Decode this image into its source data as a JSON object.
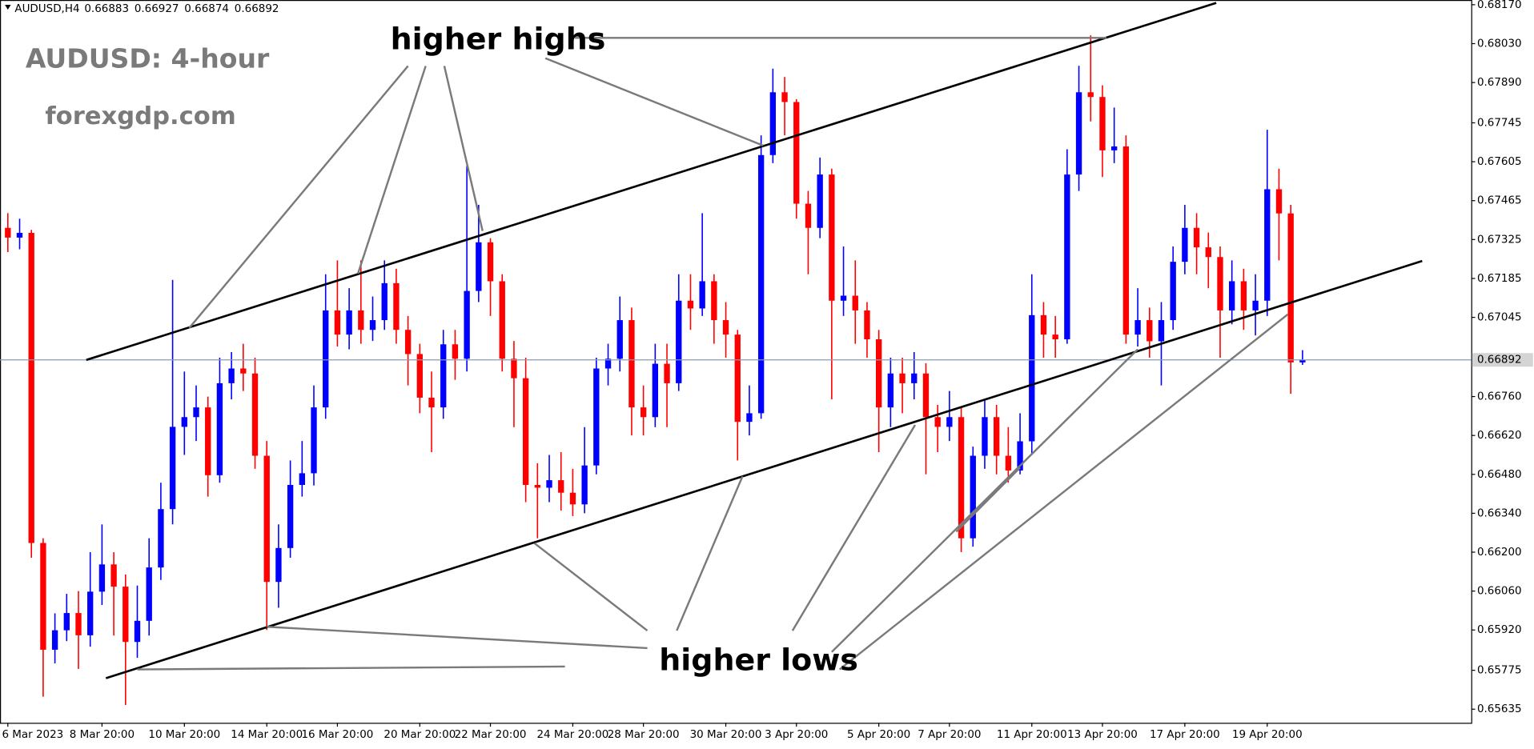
{
  "header": {
    "symbol": "AUDUSD,H4"
  },
  "chart_data": {
    "type": "candlestick",
    "title": "AUDUSD: 4-hour",
    "subtitle": "forexgdp.com",
    "annotations": [
      "higher highs",
      "higher lows"
    ],
    "up_color": "#0000ff",
    "down_color": "#ff0000",
    "grid": false,
    "ylim": [
      0.65586,
      0.68187
    ],
    "yticks": [
      {
        "value": 0.6817,
        "label": "0.68170"
      },
      {
        "value": 0.6803,
        "label": "0.68030"
      },
      {
        "value": 0.6789,
        "label": "0.67890"
      },
      {
        "value": 0.67745,
        "label": "0.67745"
      },
      {
        "value": 0.67605,
        "label": "0.67605"
      },
      {
        "value": 0.67465,
        "label": "0.67465"
      },
      {
        "value": 0.67325,
        "label": "0.67325"
      },
      {
        "value": 0.67185,
        "label": "0.67185"
      },
      {
        "value": 0.67045,
        "label": "0.67045"
      },
      {
        "value": 0.6676,
        "label": "0.66760"
      },
      {
        "value": 0.6662,
        "label": "0.66620"
      },
      {
        "value": 0.6648,
        "label": "0.66480"
      },
      {
        "value": 0.6634,
        "label": "0.66340"
      },
      {
        "value": 0.662,
        "label": "0.66200"
      },
      {
        "value": 0.6606,
        "label": "0.66060"
      },
      {
        "value": 0.6592,
        "label": "0.65920"
      },
      {
        "value": 0.65775,
        "label": "0.65775"
      },
      {
        "value": 0.65635,
        "label": "0.65635"
      }
    ],
    "categories": [
      "6 Mar 2023",
      null,
      null,
      null,
      null,
      null,
      null,
      null,
      "8 Mar 20:00",
      null,
      null,
      null,
      null,
      null,
      null,
      "10 Mar 20:00",
      null,
      null,
      null,
      null,
      null,
      null,
      "14 Mar 20:00",
      null,
      null,
      null,
      null,
      null,
      "16 Mar 20:00",
      null,
      null,
      null,
      null,
      null,
      null,
      "20 Mar 20:00",
      null,
      null,
      null,
      null,
      null,
      "22 Mar 20:00",
      null,
      null,
      null,
      null,
      null,
      null,
      "24 Mar 20:00",
      null,
      null,
      null,
      null,
      null,
      "28 Mar 20:00",
      null,
      null,
      null,
      null,
      null,
      null,
      "30 Mar 20:00",
      null,
      null,
      null,
      null,
      null,
      "3 Apr 20:00",
      null,
      null,
      null,
      null,
      null,
      null,
      "5 Apr 20:00",
      null,
      null,
      null,
      null,
      null,
      "7 Apr 20:00",
      null,
      null,
      null,
      null,
      null,
      null,
      "11 Apr 20:00",
      null,
      null,
      null,
      null,
      null,
      "13 Apr 20:00",
      null,
      null,
      null,
      null,
      null,
      null,
      "17 Apr 20:00",
      null,
      null,
      null,
      null,
      null,
      null,
      "19 Apr 20:00",
      null,
      null,
      null
    ],
    "open": [
      0.67367,
      0.67332,
      0.67349,
      0.66233,
      0.65849,
      0.65919,
      0.65981,
      0.65901,
      0.66058,
      0.66156,
      0.66076,
      0.65877,
      0.65953,
      0.66145,
      0.66355,
      0.66651,
      0.66686,
      0.66721,
      0.66477,
      0.66808,
      0.66861,
      0.66843,
      0.66547,
      0.66093,
      0.66215,
      0.66442,
      0.66484,
      0.66721,
      0.6707,
      0.66983,
      0.6707,
      0.67,
      0.67035,
      0.67168,
      0.67,
      0.66913,
      0.66756,
      0.66721,
      0.66948,
      0.66896,
      0.6714,
      0.67315,
      0.67175,
      0.66896,
      0.66826,
      0.66442,
      0.66432,
      0.66459,
      0.66414,
      0.66372,
      0.66512,
      0.66861,
      0.66896,
      0.67035,
      0.66721,
      0.66686,
      0.66878,
      0.66808,
      0.67105,
      0.67077,
      0.67175,
      0.67035,
      0.66983,
      0.66669,
      0.667,
      0.67629,
      0.67855,
      0.6782,
      0.67454,
      0.67367,
      0.67559,
      0.67105,
      0.67123,
      0.6707,
      0.66966,
      0.66721,
      0.66843,
      0.66808,
      0.66843,
      0.66686,
      0.66651,
      0.66686,
      0.6625,
      0.66547,
      0.66686,
      0.66547,
      0.66494,
      0.66599,
      0.67053,
      0.66983,
      0.66966,
      0.67559,
      0.67855,
      0.67838,
      0.67646,
      0.6766,
      0.66983,
      0.67035,
      0.66959,
      0.67035,
      0.67245,
      0.67367,
      0.67297,
      0.67262,
      0.6707,
      0.67175,
      0.6707,
      0.67105,
      0.67506,
      0.67419,
      0.66883
    ],
    "high": [
      0.6742,
      0.674,
      0.6736,
      0.6625,
      0.6598,
      0.6605,
      0.6606,
      0.662,
      0.663,
      0.662,
      0.6612,
      0.6608,
      0.6625,
      0.6645,
      0.6718,
      0.6685,
      0.668,
      0.6676,
      0.669,
      0.6692,
      0.6695,
      0.669,
      0.666,
      0.663,
      0.6653,
      0.666,
      0.668,
      0.672,
      0.6725,
      0.6715,
      0.6725,
      0.6712,
      0.6725,
      0.6722,
      0.6705,
      0.6695,
      0.6685,
      0.67,
      0.67,
      0.6759,
      0.6745,
      0.6733,
      0.672,
      0.6696,
      0.669,
      0.6652,
      0.6655,
      0.6656,
      0.665,
      0.6665,
      0.669,
      0.6695,
      0.6712,
      0.6708,
      0.668,
      0.6695,
      0.6695,
      0.672,
      0.672,
      0.6742,
      0.672,
      0.671,
      0.67,
      0.668,
      0.677,
      0.6794,
      0.6791,
      0.6783,
      0.675,
      0.6762,
      0.6758,
      0.673,
      0.6725,
      0.671,
      0.67,
      0.669,
      0.669,
      0.6692,
      0.6688,
      0.6673,
      0.6678,
      0.6672,
      0.6658,
      0.6675,
      0.6673,
      0.6665,
      0.667,
      0.672,
      0.671,
      0.6705,
      0.6765,
      0.6795,
      0.6806,
      0.6788,
      0.678,
      0.677,
      0.6715,
      0.6708,
      0.671,
      0.673,
      0.6745,
      0.6742,
      0.6735,
      0.673,
      0.6725,
      0.6722,
      0.672,
      0.6772,
      0.6758,
      0.6745,
      0.66927
    ],
    "low": [
      0.6728,
      0.6729,
      0.6618,
      0.6568,
      0.658,
      0.6588,
      0.6578,
      0.6586,
      0.6601,
      0.659,
      0.6565,
      0.6582,
      0.659,
      0.661,
      0.663,
      0.6655,
      0.666,
      0.664,
      0.6645,
      0.6675,
      0.6678,
      0.665,
      0.6592,
      0.66,
      0.6618,
      0.664,
      0.6644,
      0.6668,
      0.6694,
      0.6693,
      0.6695,
      0.6696,
      0.67,
      0.6695,
      0.668,
      0.667,
      0.6656,
      0.6668,
      0.6682,
      0.6685,
      0.671,
      0.6705,
      0.6685,
      0.6665,
      0.6638,
      0.6625,
      0.6638,
      0.6635,
      0.6633,
      0.6634,
      0.6648,
      0.668,
      0.6685,
      0.6662,
      0.6662,
      0.6665,
      0.6665,
      0.6678,
      0.67,
      0.6705,
      0.6695,
      0.669,
      0.6653,
      0.6662,
      0.6668,
      0.676,
      0.677,
      0.674,
      0.672,
      0.6733,
      0.6675,
      0.6705,
      0.6695,
      0.669,
      0.6656,
      0.6665,
      0.667,
      0.6675,
      0.6648,
      0.6656,
      0.666,
      0.662,
      0.6622,
      0.665,
      0.6648,
      0.6645,
      0.6648,
      0.6655,
      0.669,
      0.669,
      0.6695,
      0.675,
      0.6775,
      0.6755,
      0.676,
      0.6695,
      0.6694,
      0.669,
      0.668,
      0.67,
      0.672,
      0.672,
      0.6715,
      0.669,
      0.6702,
      0.67,
      0.6698,
      0.6705,
      0.6725,
      0.6677,
      0.66874
    ],
    "close": [
      0.67332,
      0.67349,
      0.66233,
      0.65849,
      0.65919,
      0.65981,
      0.65901,
      0.66058,
      0.66156,
      0.66076,
      0.65877,
      0.65953,
      0.66145,
      0.66355,
      0.66651,
      0.66686,
      0.66721,
      0.66477,
      0.66808,
      0.66861,
      0.66843,
      0.66547,
      0.66093,
      0.66215,
      0.66442,
      0.66484,
      0.66721,
      0.6707,
      0.66983,
      0.6707,
      0.67,
      0.67035,
      0.67168,
      0.67,
      0.66913,
      0.66756,
      0.66721,
      0.66948,
      0.66896,
      0.6714,
      0.67315,
      0.67175,
      0.66896,
      0.66826,
      0.66442,
      0.66432,
      0.66459,
      0.66414,
      0.66372,
      0.66512,
      0.66861,
      0.66896,
      0.67035,
      0.66721,
      0.66686,
      0.66878,
      0.66808,
      0.67105,
      0.67077,
      0.67175,
      0.67035,
      0.66983,
      0.66669,
      0.667,
      0.67629,
      0.67855,
      0.6782,
      0.67454,
      0.67367,
      0.67559,
      0.67105,
      0.67123,
      0.6707,
      0.66966,
      0.66721,
      0.66843,
      0.66808,
      0.66843,
      0.66686,
      0.66651,
      0.66686,
      0.6625,
      0.66547,
      0.66686,
      0.66547,
      0.66494,
      0.66599,
      0.67053,
      0.66983,
      0.66966,
      0.67559,
      0.67855,
      0.67838,
      0.67646,
      0.6766,
      0.66983,
      0.67035,
      0.66959,
      0.67035,
      0.67245,
      0.67367,
      0.67297,
      0.67262,
      0.6707,
      0.67175,
      0.6707,
      0.67105,
      0.67506,
      0.67419,
      0.66883,
      0.66892
    ]
  }
}
